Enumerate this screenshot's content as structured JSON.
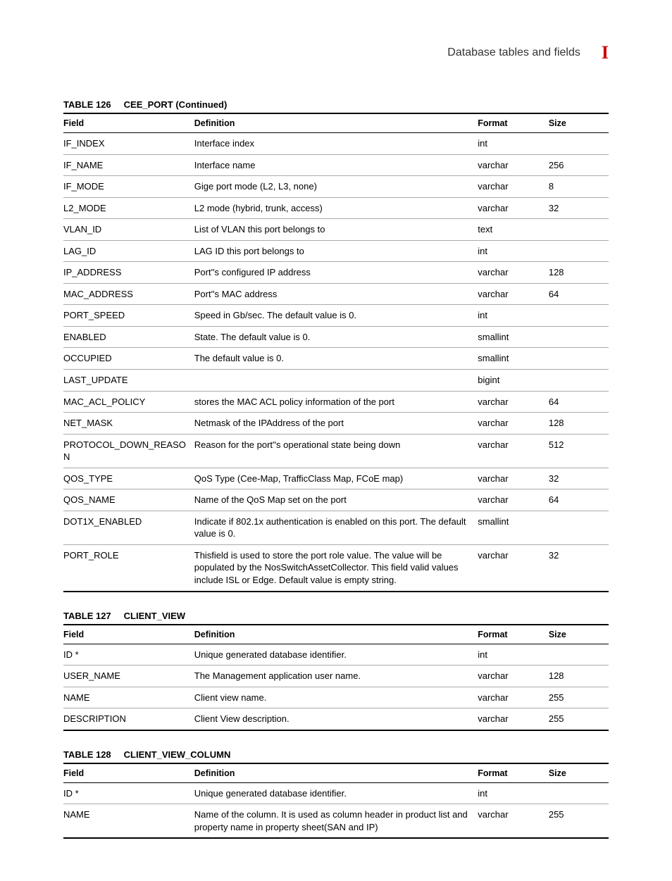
{
  "header": {
    "title": "Database tables and fields",
    "section_marker": "I"
  },
  "columns": {
    "field": "Field",
    "definition": "Definition",
    "format": "Format",
    "size": "Size"
  },
  "tables": [
    {
      "caption_num": "TABLE 126",
      "caption_name": "CEE_PORT (Continued)",
      "rows": [
        {
          "field": "IF_INDEX",
          "definition": "Interface index",
          "format": "int",
          "size": ""
        },
        {
          "field": "IF_NAME",
          "definition": "Interface name",
          "format": "varchar",
          "size": "256"
        },
        {
          "field": "IF_MODE",
          "definition": "Gige port mode (L2, L3, none)",
          "format": "varchar",
          "size": "8"
        },
        {
          "field": "L2_MODE",
          "definition": "L2 mode (hybrid, trunk, access)",
          "format": "varchar",
          "size": "32"
        },
        {
          "field": "VLAN_ID",
          "definition": "List of VLAN this port belongs to",
          "format": "text",
          "size": ""
        },
        {
          "field": "LAG_ID",
          "definition": "LAG ID this port belongs to",
          "format": "int",
          "size": ""
        },
        {
          "field": "IP_ADDRESS",
          "definition": "Port''s configured IP address",
          "format": "varchar",
          "size": "128"
        },
        {
          "field": "MAC_ADDRESS",
          "definition": "Port''s MAC address",
          "format": "varchar",
          "size": "64"
        },
        {
          "field": "PORT_SPEED",
          "definition": "Speed in Gb/sec. The default value is 0.",
          "format": "int",
          "size": ""
        },
        {
          "field": "ENABLED",
          "definition": "State. The default value is 0.",
          "format": "smallint",
          "size": ""
        },
        {
          "field": "OCCUPIED",
          "definition": "The default value is 0.",
          "format": "smallint",
          "size": ""
        },
        {
          "field": "LAST_UPDATE",
          "definition": "",
          "format": "bigint",
          "size": ""
        },
        {
          "field": "MAC_ACL_POLICY",
          "definition": "stores the MAC ACL policy information of the port",
          "format": "varchar",
          "size": "64"
        },
        {
          "field": "NET_MASK",
          "definition": "Netmask of the IPAddress of the port",
          "format": "varchar",
          "size": "128"
        },
        {
          "field": "PROTOCOL_DOWN_REASON",
          "definition": "Reason for the port''s operational state being down",
          "format": "varchar",
          "size": "512"
        },
        {
          "field": "QOS_TYPE",
          "definition": "QoS Type (Cee-Map, TrafficClass Map, FCoE map)",
          "format": "varchar",
          "size": "32"
        },
        {
          "field": "QOS_NAME",
          "definition": "Name of the QoS Map set on the port",
          "format": "varchar",
          "size": "64"
        },
        {
          "field": "DOT1X_ENABLED",
          "definition": "Indicate if 802.1x authentication is enabled on this port. The default value is 0.",
          "format": "smallint",
          "size": ""
        },
        {
          "field": "PORT_ROLE",
          "definition": "Thisfield is used to store the port role value. The value will be populated by the NosSwitchAssetCollector. This field valid values include ISL or Edge. Default value is empty string.",
          "format": "varchar",
          "size": "32"
        }
      ]
    },
    {
      "caption_num": "TABLE 127",
      "caption_name": "CLIENT_VIEW",
      "rows": [
        {
          "field": "ID *",
          "definition": "Unique generated database identifier.",
          "format": "int",
          "size": ""
        },
        {
          "field": "USER_NAME",
          "definition": "The Management application user name.",
          "format": "varchar",
          "size": "128"
        },
        {
          "field": "NAME",
          "definition": "Client view name.",
          "format": "varchar",
          "size": "255"
        },
        {
          "field": "DESCRIPTION",
          "definition": "Client View description.",
          "format": "varchar",
          "size": "255"
        }
      ]
    },
    {
      "caption_num": "TABLE 128",
      "caption_name": "CLIENT_VIEW_COLUMN",
      "rows": [
        {
          "field": "ID *",
          "definition": "Unique generated database identifier.",
          "format": "int",
          "size": ""
        },
        {
          "field": "NAME",
          "definition": "Name of the column. It is used as column header in product list and property name in property sheet(SAN and IP)",
          "format": "varchar",
          "size": "255"
        }
      ]
    }
  ]
}
